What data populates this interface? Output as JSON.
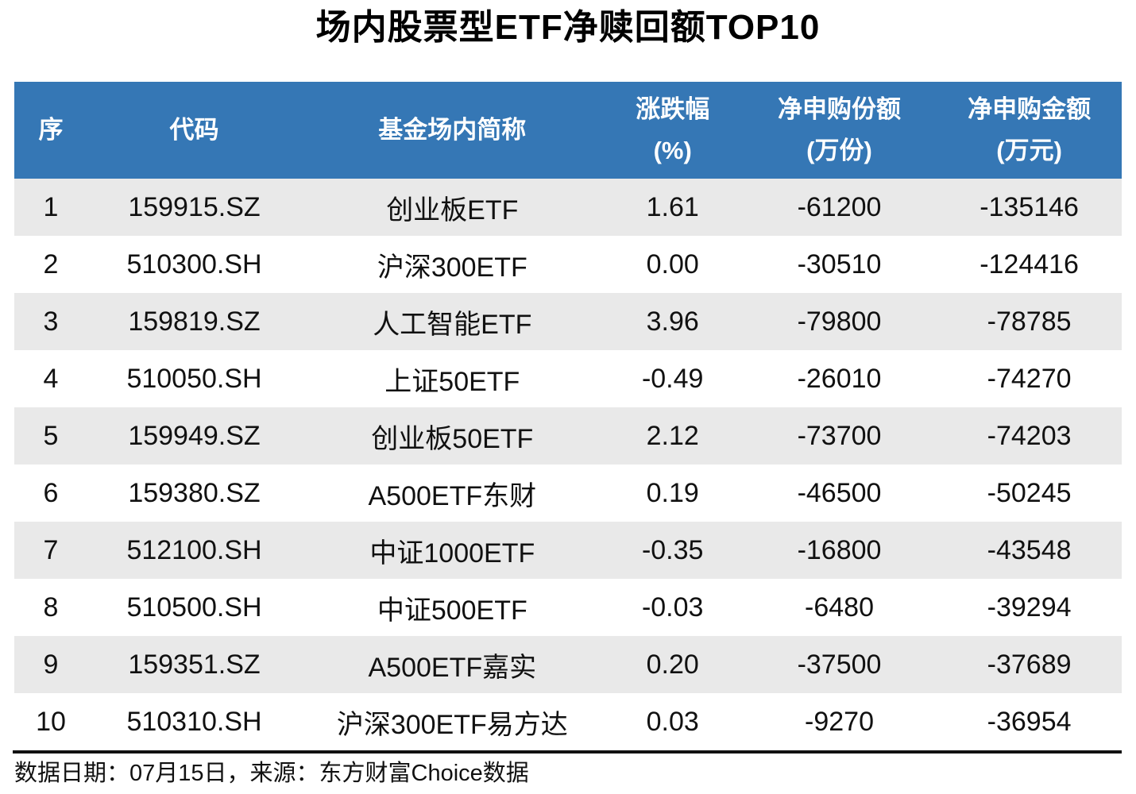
{
  "page": {
    "title": "场内股票型ETF净赎回额TOP10",
    "footer_note": "数据日期：07月15日，来源：东方财富Choice数据"
  },
  "colors": {
    "header_bg": "#3577B5",
    "header_text": "#FFFFFF",
    "row_alt_bg": "#E9E9E9",
    "row_bg": "#FFFFFF",
    "text": "#111111",
    "divider": "#111111"
  },
  "table": {
    "headers": [
      {
        "line1": "序",
        "line2": ""
      },
      {
        "line1": "代码",
        "line2": ""
      },
      {
        "line1": "基金场内简称",
        "line2": ""
      },
      {
        "line1": "涨跌幅",
        "line2": "(%)"
      },
      {
        "line1": "净申购份额",
        "line2": "(万份)"
      },
      {
        "line1": "净申购金额",
        "line2": "(万元)"
      }
    ],
    "rows": [
      {
        "no": "1",
        "code": "159915.SZ",
        "name": "创业板ETF",
        "change": "1.61",
        "shares": "-61200",
        "amount": "-135146"
      },
      {
        "no": "2",
        "code": "510300.SH",
        "name": "沪深300ETF",
        "change": "0.00",
        "shares": "-30510",
        "amount": "-124416"
      },
      {
        "no": "3",
        "code": "159819.SZ",
        "name": "人工智能ETF",
        "change": "3.96",
        "shares": "-79800",
        "amount": "-78785"
      },
      {
        "no": "4",
        "code": "510050.SH",
        "name": "上证50ETF",
        "change": "-0.49",
        "shares": "-26010",
        "amount": "-74270"
      },
      {
        "no": "5",
        "code": "159949.SZ",
        "name": "创业板50ETF",
        "change": "2.12",
        "shares": "-73700",
        "amount": "-74203"
      },
      {
        "no": "6",
        "code": "159380.SZ",
        "name": "A500ETF东财",
        "change": "0.19",
        "shares": "-46500",
        "amount": "-50245"
      },
      {
        "no": "7",
        "code": "512100.SH",
        "name": "中证1000ETF",
        "change": "-0.35",
        "shares": "-16800",
        "amount": "-43548"
      },
      {
        "no": "8",
        "code": "510500.SH",
        "name": "中证500ETF",
        "change": "-0.03",
        "shares": "-6480",
        "amount": "-39294"
      },
      {
        "no": "9",
        "code": "159351.SZ",
        "name": "A500ETF嘉实",
        "change": "0.20",
        "shares": "-37500",
        "amount": "-37689"
      },
      {
        "no": "10",
        "code": "510310.SH",
        "name": "沪深300ETF易方达",
        "change": "0.03",
        "shares": "-9270",
        "amount": "-36954"
      }
    ]
  },
  "chart_data": {
    "type": "table",
    "title": "场内股票型ETF净赎回额TOP10",
    "columns": [
      "序",
      "代码",
      "基金场内简称",
      "涨跌幅(%)",
      "净申购份额(万份)",
      "净申购金额(万元)"
    ],
    "rows": [
      [
        1,
        "159915.SZ",
        "创业板ETF",
        1.61,
        -61200,
        -135146
      ],
      [
        2,
        "510300.SH",
        "沪深300ETF",
        0.0,
        -30510,
        -124416
      ],
      [
        3,
        "159819.SZ",
        "人工智能ETF",
        3.96,
        -79800,
        -78785
      ],
      [
        4,
        "510050.SH",
        "上证50ETF",
        -0.49,
        -26010,
        -74270
      ],
      [
        5,
        "159949.SZ",
        "创业板50ETF",
        2.12,
        -73700,
        -74203
      ],
      [
        6,
        "159380.SZ",
        "A500ETF东财",
        0.19,
        -46500,
        -50245
      ],
      [
        7,
        "512100.SH",
        "中证1000ETF",
        -0.35,
        -16800,
        -43548
      ],
      [
        8,
        "510500.SH",
        "中证500ETF",
        -0.03,
        -6480,
        -39294
      ],
      [
        9,
        "159351.SZ",
        "A500ETF嘉实",
        0.2,
        -37500,
        -37689
      ],
      [
        10,
        "510310.SH",
        "沪深300ETF易方达",
        0.03,
        -9270,
        -36954
      ]
    ],
    "source_note": "数据日期：07月15日，来源：东方财富Choice数据",
    "layout": {
      "header_bg": "#3577B5",
      "zebra_stripes": true,
      "gridlines": false
    }
  }
}
